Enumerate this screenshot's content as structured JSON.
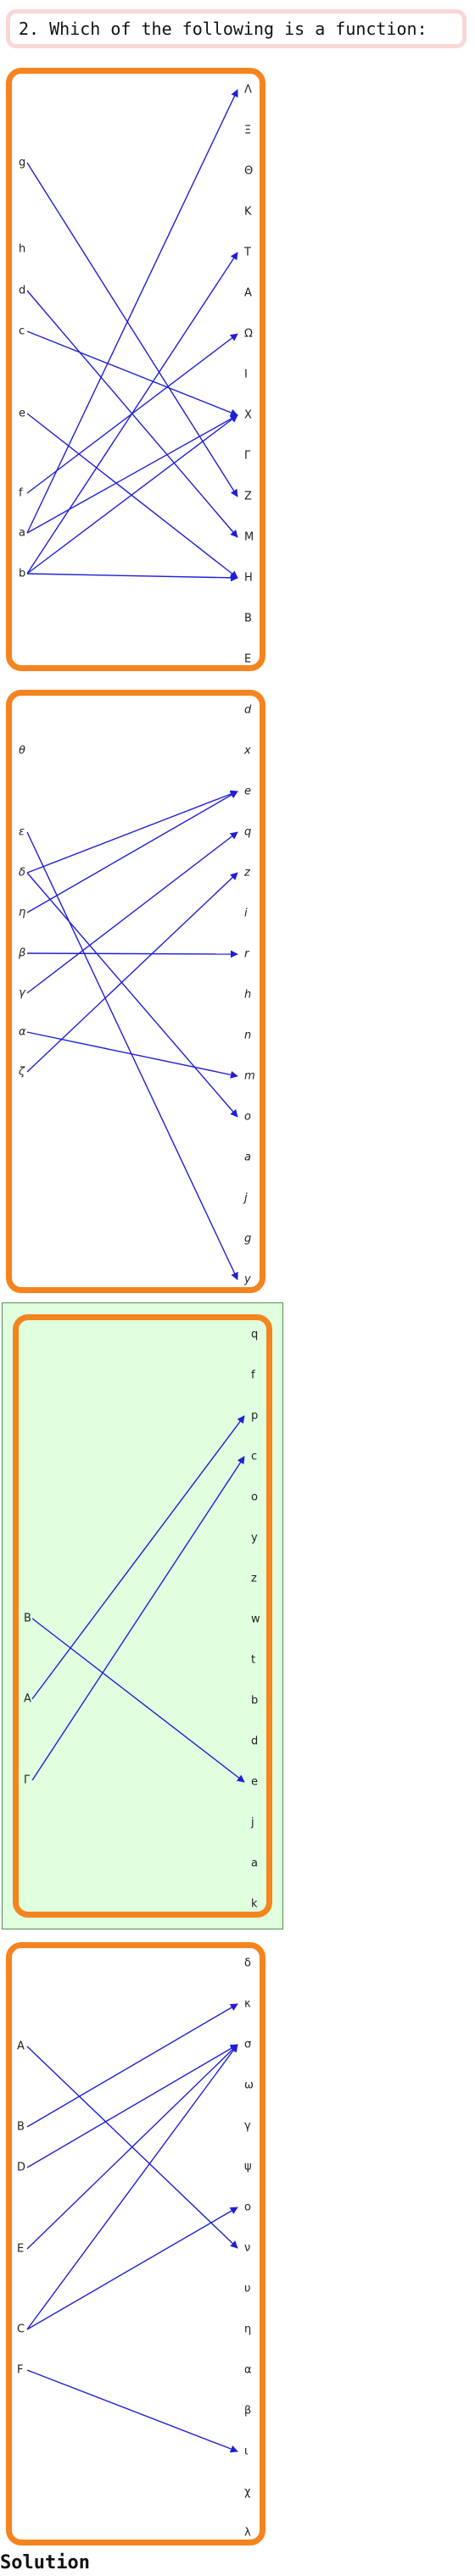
{
  "question": {
    "text": "2. Which of the following is a function:"
  },
  "solution": {
    "label": "Solution"
  },
  "colors": {
    "panel_border": "#f5841f",
    "arrow": "#1f1fd6",
    "answer_highlight": "#dfffdf",
    "question_border": "#fbd6d6"
  },
  "diagrams": [
    {
      "id": "diagram-1",
      "italic": false,
      "highlighted": false,
      "domain": [
        "g",
        "h",
        "d",
        "c",
        "e",
        "f",
        "a",
        "b"
      ],
      "codomain": [
        "Λ",
        "Ξ",
        "Θ",
        "Κ",
        "Τ",
        "Α",
        "Ω",
        "Ι",
        "Χ",
        "Γ",
        "Ζ",
        "Μ",
        "Η",
        "Β",
        "Ε"
      ],
      "mappings": [
        [
          "g",
          "Ζ"
        ],
        [
          "d",
          "Μ"
        ],
        [
          "c",
          "Χ"
        ],
        [
          "e",
          "Η"
        ],
        [
          "f",
          "Ω"
        ],
        [
          "a",
          "Λ"
        ],
        [
          "a",
          "Χ"
        ],
        [
          "b",
          "Τ"
        ],
        [
          "b",
          "Χ"
        ],
        [
          "b",
          "Η"
        ]
      ]
    },
    {
      "id": "diagram-2",
      "italic": true,
      "highlighted": false,
      "domain": [
        "θ",
        "ε",
        "δ",
        "η",
        "β",
        "γ",
        "α",
        "ζ"
      ],
      "codomain": [
        "d",
        "x",
        "e",
        "q",
        "z",
        "i",
        "r",
        "h",
        "n",
        "m",
        "o",
        "a",
        "j",
        "g",
        "y"
      ],
      "mappings": [
        [
          "ε",
          "y"
        ],
        [
          "δ",
          "e"
        ],
        [
          "δ",
          "o"
        ],
        [
          "η",
          "e"
        ],
        [
          "β",
          "r"
        ],
        [
          "γ",
          "q"
        ],
        [
          "α",
          "m"
        ],
        [
          "ζ",
          "z"
        ]
      ]
    },
    {
      "id": "diagram-3",
      "italic": false,
      "highlighted": true,
      "domain": [
        "B",
        "A",
        "Γ"
      ],
      "codomain": [
        "q",
        "f",
        "p",
        "c",
        "o",
        "y",
        "z",
        "w",
        "t",
        "b",
        "d",
        "e",
        "j",
        "a",
        "k"
      ],
      "mappings": [
        [
          "B",
          "e"
        ],
        [
          "A",
          "p"
        ],
        [
          "Γ",
          "c"
        ]
      ]
    },
    {
      "id": "diagram-4",
      "italic": false,
      "highlighted": false,
      "domain": [
        "A",
        "B",
        "D",
        "E",
        "C",
        "F"
      ],
      "codomain": [
        "δ",
        "κ",
        "σ",
        "ω",
        "γ",
        "ψ",
        "ο",
        "ν",
        "υ",
        "η",
        "α",
        "β",
        "ι",
        "χ",
        "λ"
      ],
      "mappings": [
        [
          "A",
          "ν"
        ],
        [
          "B",
          "κ"
        ],
        [
          "D",
          "σ"
        ],
        [
          "E",
          "σ"
        ],
        [
          "C",
          "σ"
        ],
        [
          "C",
          "ο"
        ],
        [
          "F",
          "ι"
        ]
      ]
    }
  ]
}
